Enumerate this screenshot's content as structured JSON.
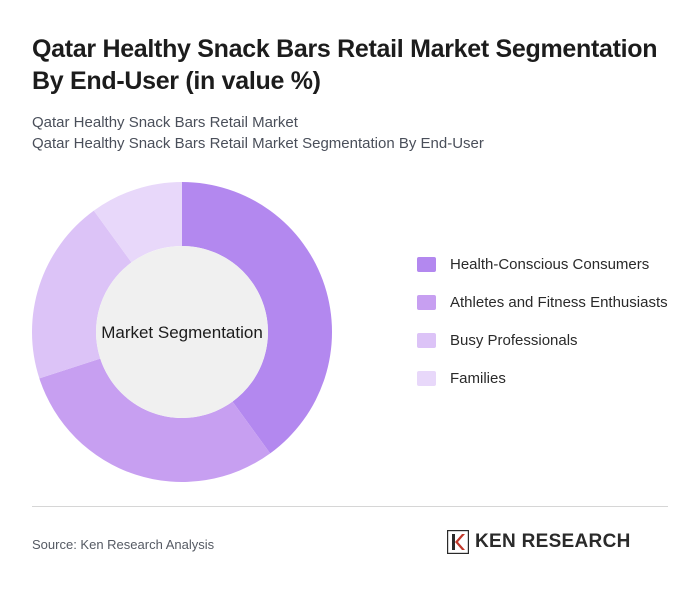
{
  "header": {
    "title": "Qatar Healthy Snack Bars Retail Market Segmentation By End-User (in value %)",
    "subtitle_1": "Qatar Healthy Snack Bars Retail Market",
    "subtitle_2": "Qatar Healthy Snack Bars Retail Market Segmentation By End-User"
  },
  "chart_data": {
    "type": "pie",
    "variant": "donut",
    "center_label": "Market Segmentation",
    "categories": [
      "Health-Conscious Consumers",
      "Athletes and Fitness Enthusiasts",
      "Busy Professionals",
      "Families"
    ],
    "values": [
      40,
      30,
      20,
      10
    ],
    "colors": [
      "#b388ef",
      "#c79ff1",
      "#dcc3f7",
      "#e8d8fa"
    ],
    "legend_position": "right"
  },
  "footer": {
    "source": "Source: Ken Research Analysis",
    "logo_text": "KEN RESEARCH"
  }
}
